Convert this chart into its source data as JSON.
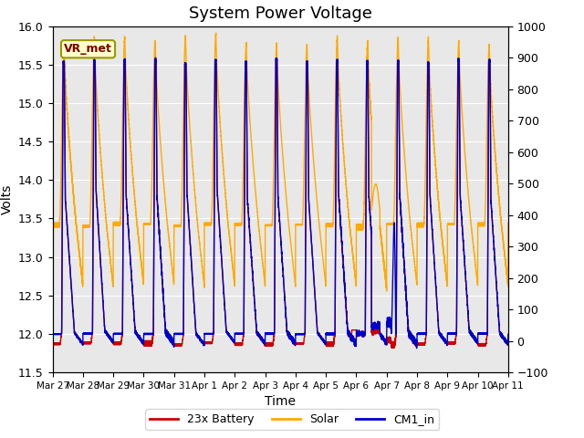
{
  "title": "System Power Voltage",
  "xlabel": "Time",
  "ylabel_left": "Volts",
  "ylim_left": [
    11.5,
    16.0
  ],
  "ylim_right": [
    -100,
    1000
  ],
  "legend_entries": [
    "23x Battery",
    "Solar",
    "CM1_in"
  ],
  "legend_colors": [
    "#cc0000",
    "#ffaa00",
    "#0000cc"
  ],
  "vr_met_label": "VR_met",
  "background_color": "#ffffff",
  "plot_bg_color": "#e8e8e8",
  "grid_color": "#ffffff",
  "x_tick_labels": [
    "Mar 27",
    "Mar 28",
    "Mar 29",
    "Mar 30",
    "Mar 31",
    "Apr 1",
    "Apr 2",
    "Apr 3",
    "Apr 4",
    "Apr 5",
    "Apr 6",
    "Apr 7",
    "Apr 8",
    "Apr 9",
    "Apr 10",
    "Apr 11"
  ],
  "num_days": 15,
  "title_fontsize": 13
}
